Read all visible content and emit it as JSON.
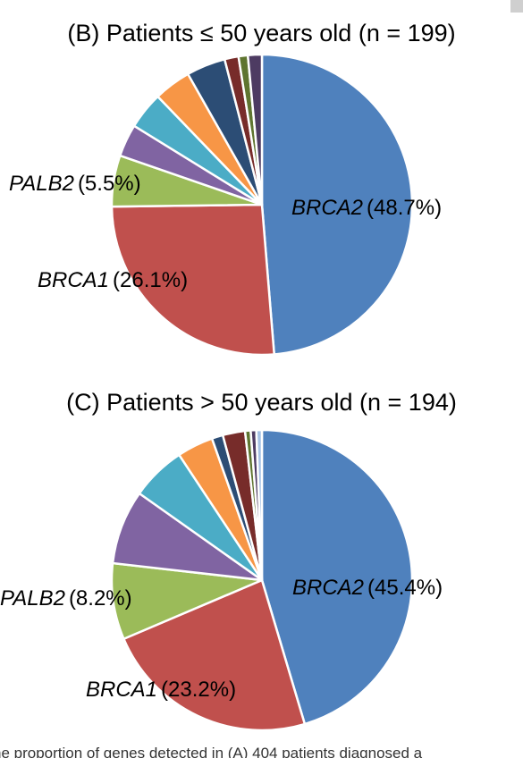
{
  "chart_data": [
    {
      "type": "pie",
      "title": "(B) Patients ≤ 50 years old (n = 199)",
      "slices": [
        {
          "gene": "BRCA2",
          "pct": "(48.7%)",
          "value": 48.7,
          "color": "#4f81bd",
          "label": true
        },
        {
          "gene": "BRCA1",
          "pct": "(26.1%)",
          "value": 26.1,
          "color": "#c0504d",
          "label": true
        },
        {
          "gene": "PALB2",
          "pct": "(5.5%)",
          "value": 5.5,
          "color": "#9bbb59",
          "label": true
        },
        {
          "value": 3.5,
          "color": "#8064a2",
          "label": false
        },
        {
          "value": 4.0,
          "color": "#4bacc6",
          "label": false
        },
        {
          "value": 4.0,
          "color": "#f79646",
          "label": false
        },
        {
          "value": 4.2,
          "color": "#2c4d75",
          "label": false
        },
        {
          "value": 1.5,
          "color": "#772c2a",
          "label": false
        },
        {
          "value": 1.0,
          "color": "#5f7530",
          "label": false
        },
        {
          "value": 1.5,
          "color": "#4d3b62",
          "label": false
        }
      ]
    },
    {
      "type": "pie",
      "title": "(C) Patients > 50 years old (n = 194)",
      "slices": [
        {
          "gene": "BRCA2",
          "pct": "(45.4%)",
          "value": 45.4,
          "color": "#4f81bd",
          "label": true
        },
        {
          "gene": "BRCA1",
          "pct": "(23.2%)",
          "value": 23.2,
          "color": "#c0504d",
          "label": true
        },
        {
          "gene": "PALB2",
          "pct": "(8.2%)",
          "value": 8.2,
          "color": "#9bbb59",
          "label": true
        },
        {
          "value": 8.0,
          "color": "#8064a2",
          "label": false
        },
        {
          "value": 5.9,
          "color": "#4bacc6",
          "label": false
        },
        {
          "value": 3.9,
          "color": "#f79646",
          "label": false
        },
        {
          "value": 1.2,
          "color": "#2c4d75",
          "label": false
        },
        {
          "value": 2.4,
          "color": "#772c2a",
          "label": false
        },
        {
          "value": 0.6,
          "color": "#5f7530",
          "label": false
        },
        {
          "value": 0.6,
          "color": "#4d3b62",
          "label": false
        },
        {
          "value": 0.6,
          "color": "#a5c2e5",
          "label": false
        }
      ]
    }
  ],
  "caption": "he proportion of genes detected in (A) 404 patients diagnosed a"
}
